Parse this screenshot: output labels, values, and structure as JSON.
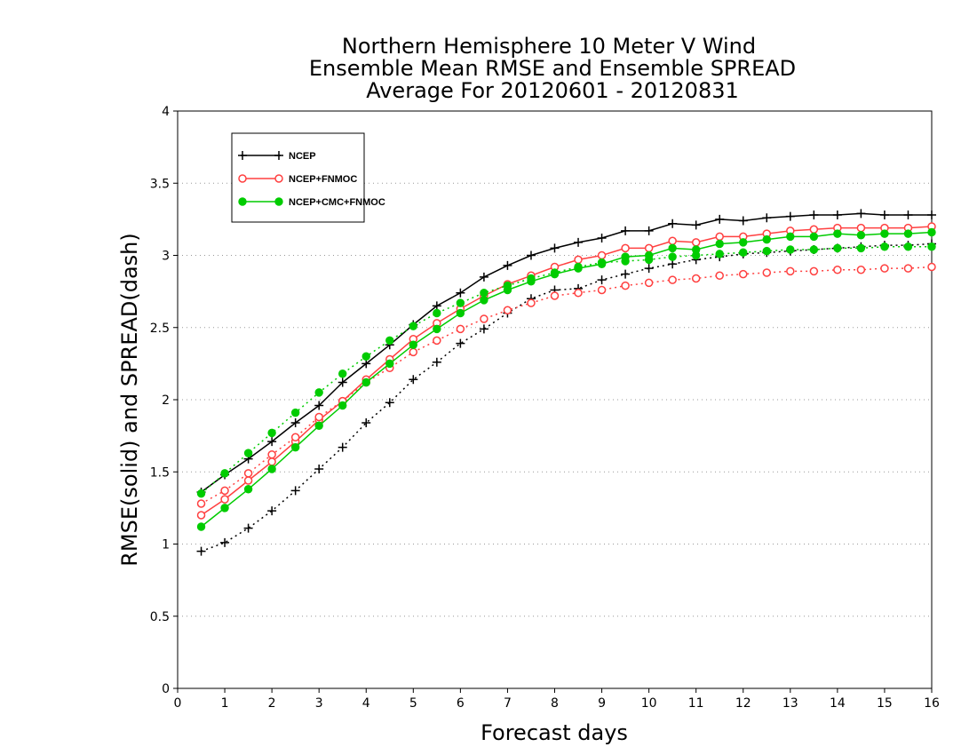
{
  "chart_data": {
    "type": "line",
    "title_lines": [
      "Northern Hemisphere 10 Meter V Wind",
      "Ensemble Mean RMSE and Ensemble SPREAD",
      "Average For 20120601 - 20120831"
    ],
    "xlabel": "Forecast days",
    "ylabel": "RMSE(solid) and SPREAD(dash)",
    "xlim": [
      0,
      16
    ],
    "ylim": [
      0,
      4
    ],
    "xticks": [
      "0",
      "1",
      "2",
      "3",
      "4",
      "5",
      "6",
      "7",
      "8",
      "9",
      "10",
      "11",
      "12",
      "13",
      "14",
      "15",
      "16"
    ],
    "yticks": [
      "0",
      "0.5",
      "1",
      "1.5",
      "2",
      "2.5",
      "3",
      "3.5",
      "4"
    ],
    "grid": "horizontal dotted",
    "legend_position": "top-left",
    "x": [
      0.5,
      1,
      1.5,
      2,
      2.5,
      3,
      3.5,
      4,
      4.5,
      5,
      5.5,
      6,
      6.5,
      7,
      7.5,
      8,
      8.5,
      9,
      9.5,
      10,
      10.5,
      11,
      11.5,
      12,
      12.5,
      13,
      13.5,
      14,
      14.5,
      15,
      15.5,
      16
    ],
    "series": [
      {
        "name": "NCEP",
        "color": "#000000",
        "marker": "plus",
        "rmse": [
          1.36,
          1.48,
          1.59,
          1.71,
          1.84,
          1.96,
          2.12,
          2.25,
          2.38,
          2.52,
          2.65,
          2.74,
          2.85,
          2.93,
          3.0,
          3.05,
          3.09,
          3.12,
          3.17,
          3.17,
          3.22,
          3.21,
          3.25,
          3.24,
          3.26,
          3.27,
          3.28,
          3.28,
          3.29,
          3.28,
          3.28,
          3.28
        ],
        "spread": [
          0.95,
          1.01,
          1.11,
          1.23,
          1.37,
          1.52,
          1.67,
          1.84,
          1.98,
          2.14,
          2.26,
          2.39,
          2.49,
          2.6,
          2.7,
          2.76,
          2.77,
          2.83,
          2.87,
          2.91,
          2.94,
          2.97,
          2.99,
          3.01,
          3.02,
          3.03,
          3.04,
          3.05,
          3.06,
          3.07,
          3.07,
          3.08
        ]
      },
      {
        "name": "NCEP+FNMOC",
        "color": "#ff4040",
        "marker": "open-circle",
        "rmse": [
          1.2,
          1.31,
          1.44,
          1.57,
          1.71,
          1.86,
          1.99,
          2.14,
          2.28,
          2.42,
          2.53,
          2.63,
          2.72,
          2.8,
          2.86,
          2.92,
          2.97,
          3.0,
          3.05,
          3.05,
          3.1,
          3.09,
          3.13,
          3.13,
          3.15,
          3.17,
          3.18,
          3.19,
          3.19,
          3.19,
          3.19,
          3.2
        ],
        "spread": [
          1.28,
          1.37,
          1.49,
          1.62,
          1.74,
          1.88,
          1.99,
          2.12,
          2.22,
          2.33,
          2.41,
          2.49,
          2.56,
          2.62,
          2.67,
          2.72,
          2.74,
          2.76,
          2.79,
          2.81,
          2.83,
          2.84,
          2.86,
          2.87,
          2.88,
          2.89,
          2.89,
          2.9,
          2.9,
          2.91,
          2.91,
          2.92
        ]
      },
      {
        "name": "NCEP+CMC+FNMOC",
        "color": "#00cc00",
        "marker": "filled-circle",
        "rmse": [
          1.12,
          1.25,
          1.38,
          1.52,
          1.67,
          1.82,
          1.96,
          2.12,
          2.25,
          2.38,
          2.49,
          2.6,
          2.69,
          2.76,
          2.82,
          2.87,
          2.91,
          2.94,
          2.99,
          3.0,
          3.05,
          3.04,
          3.08,
          3.09,
          3.11,
          3.13,
          3.13,
          3.15,
          3.14,
          3.15,
          3.15,
          3.16
        ],
        "spread": [
          1.35,
          1.49,
          1.63,
          1.77,
          1.91,
          2.05,
          2.18,
          2.3,
          2.41,
          2.51,
          2.6,
          2.67,
          2.74,
          2.79,
          2.84,
          2.88,
          2.92,
          2.95,
          2.96,
          2.97,
          2.99,
          3.0,
          3.01,
          3.02,
          3.03,
          3.04,
          3.04,
          3.05,
          3.05,
          3.06,
          3.06,
          3.06
        ]
      }
    ]
  }
}
